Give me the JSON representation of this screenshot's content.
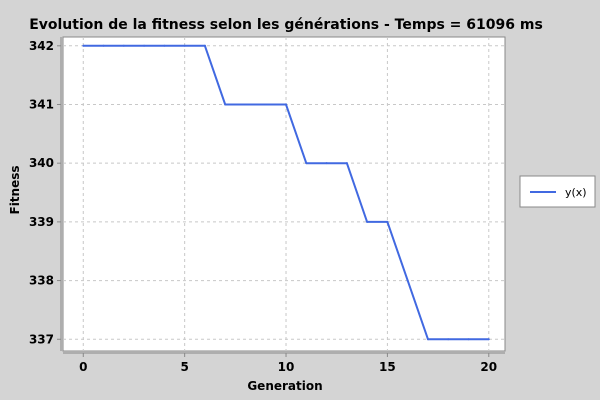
{
  "chart_data": {
    "type": "line",
    "title": "Evolution de la fitness selon les générations - Temps = 61096 ms",
    "xlabel": "Generation",
    "ylabel": "Fitness",
    "xlim": [
      -1,
      20.8
    ],
    "ylim": [
      336.8,
      342.15
    ],
    "x_ticks": [
      0,
      5,
      10,
      15,
      20
    ],
    "y_ticks": [
      337,
      338,
      339,
      340,
      341,
      342
    ],
    "grid": true,
    "legend_position": "right",
    "series": [
      {
        "name": "y(x)",
        "color": "#4169e1",
        "x": [
          0,
          1,
          2,
          3,
          4,
          5,
          6,
          7,
          8,
          9,
          10,
          11,
          12,
          13,
          14,
          15,
          16,
          17,
          18,
          19,
          20
        ],
        "y": [
          342,
          342,
          342,
          342,
          342,
          342,
          342,
          341,
          341,
          341,
          341,
          340,
          340,
          340,
          339,
          339,
          338,
          337,
          337,
          337,
          337
        ]
      }
    ]
  }
}
